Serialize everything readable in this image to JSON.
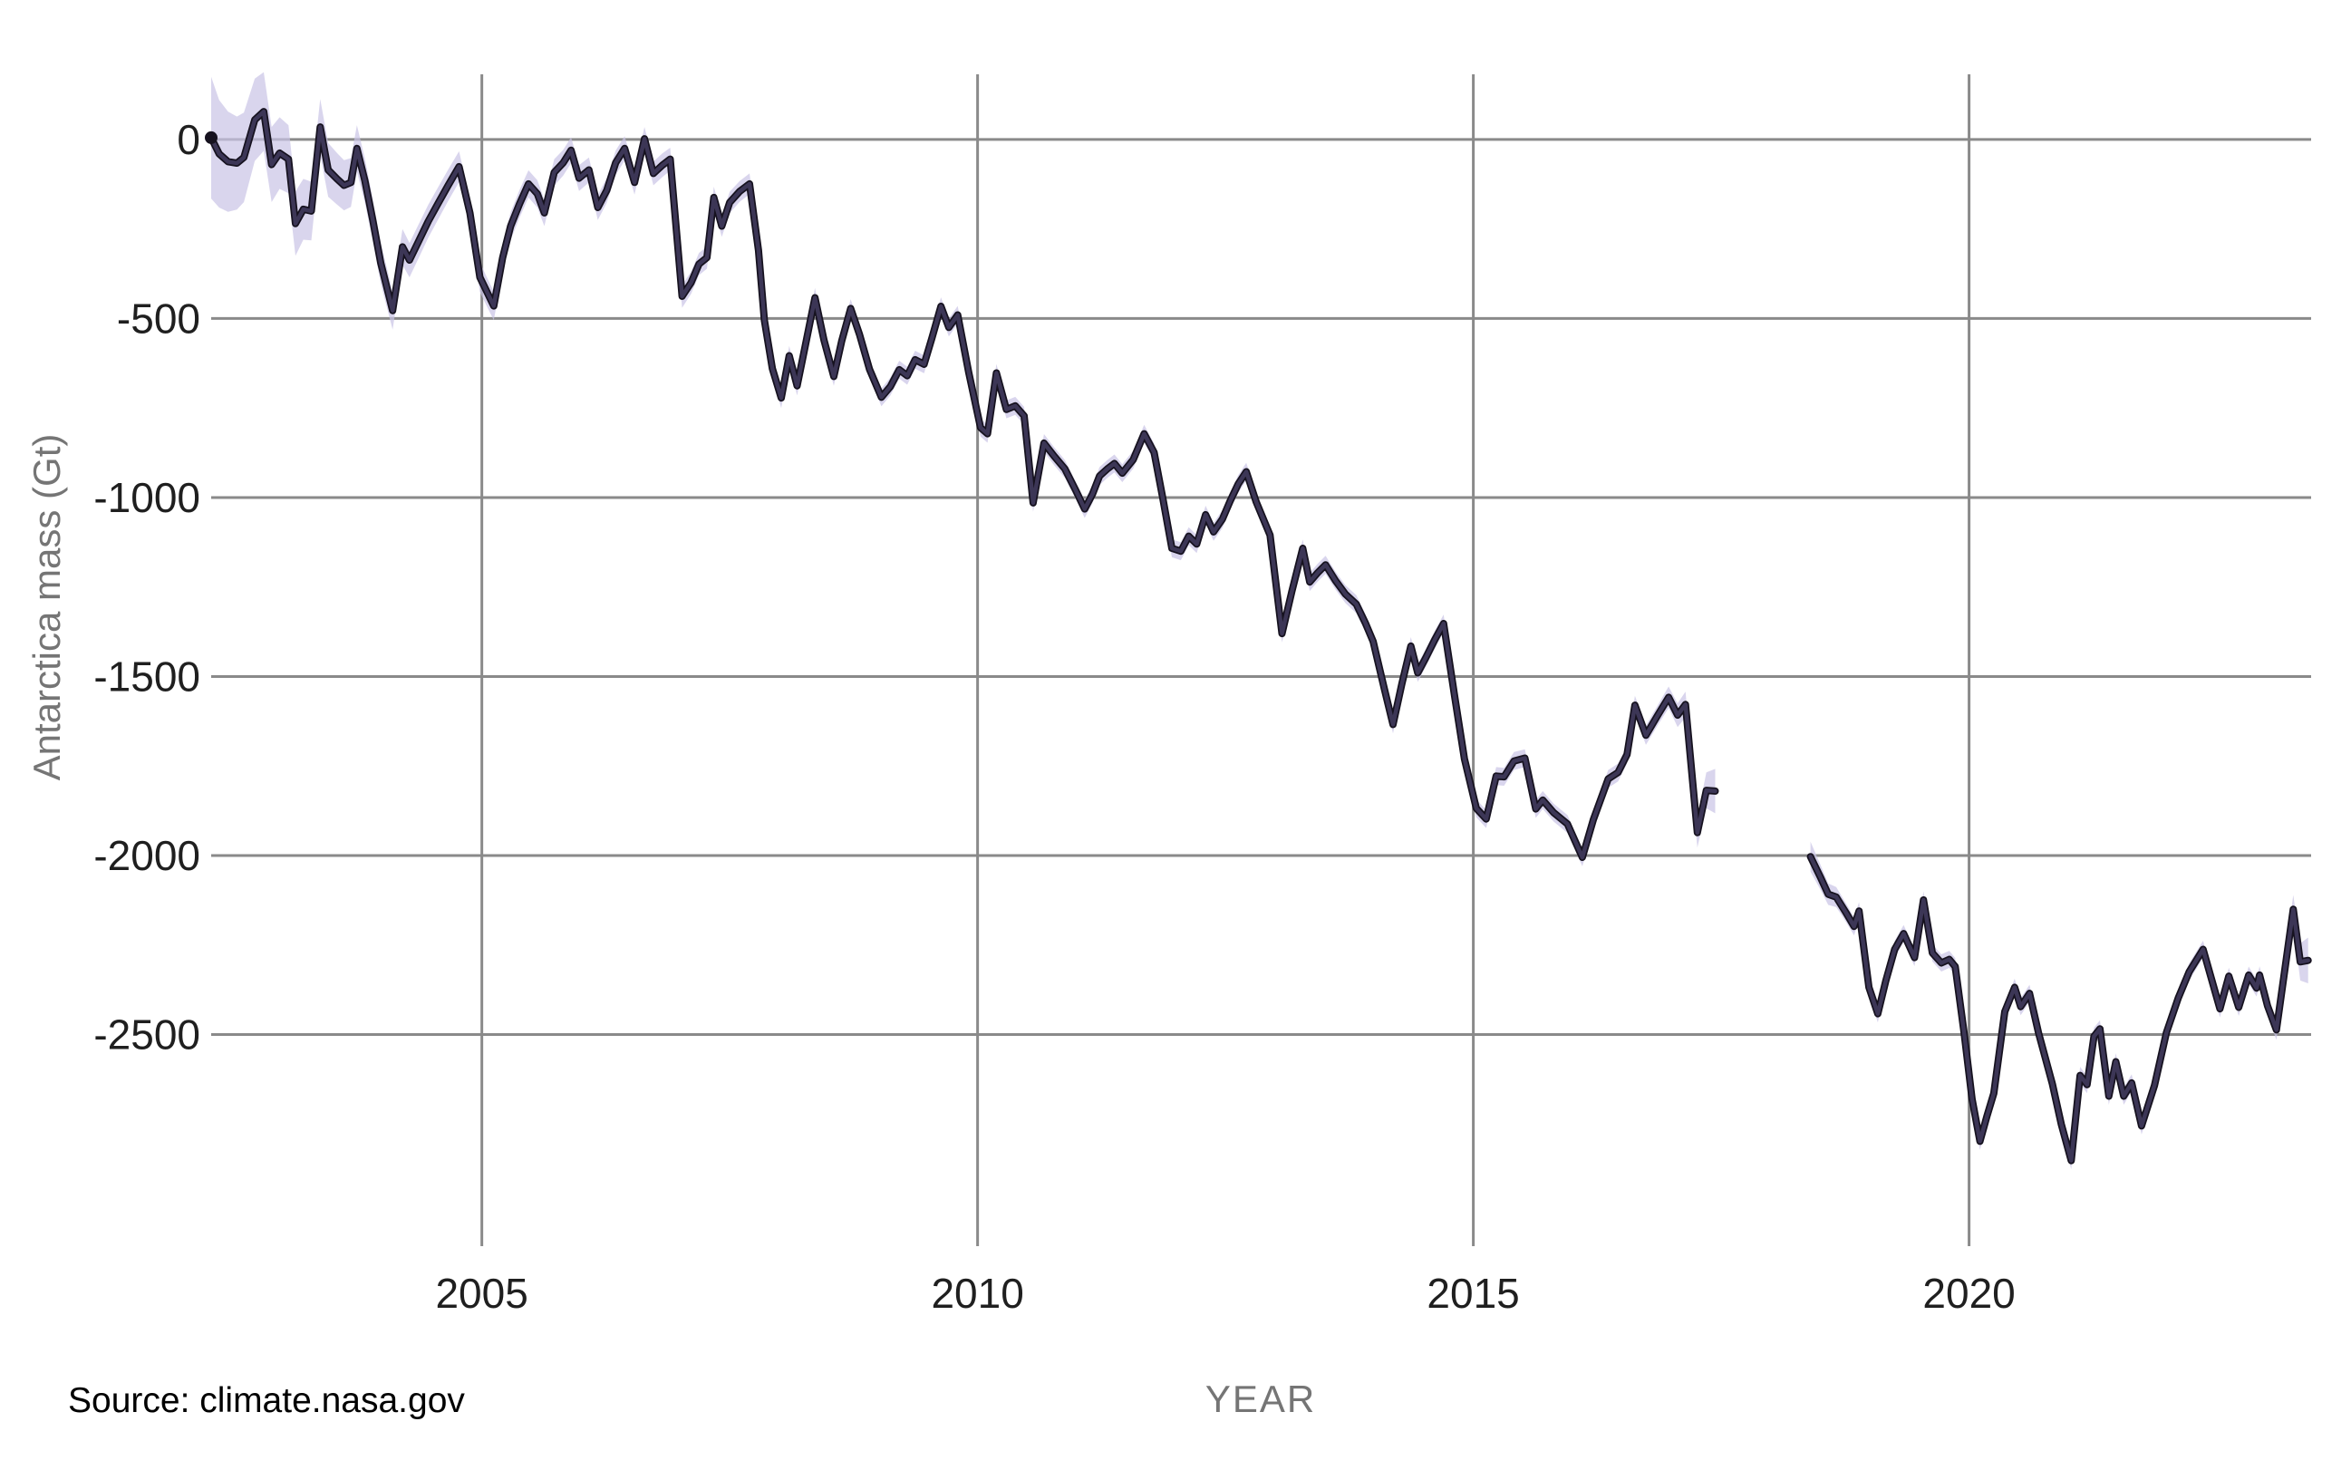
{
  "page": {
    "background": "#ffffff"
  },
  "source_note": "Source: climate.nasa.gov",
  "chart_data": {
    "type": "line",
    "title": "",
    "xlabel": "YEAR",
    "ylabel": "Antarctica mass (Gt)",
    "grid": true,
    "legend": "none",
    "xlim": [
      2002.27,
      2023.45
    ],
    "ylim": [
      182,
      -3091
    ],
    "x_ticks": [
      {
        "v": 2005,
        "label": "2005"
      },
      {
        "v": 2010,
        "label": "2010"
      },
      {
        "v": 2015,
        "label": "2015"
      },
      {
        "v": 2020,
        "label": "2020"
      }
    ],
    "y_ticks": [
      {
        "v": 0,
        "label": "0"
      },
      {
        "v": -500,
        "label": "-500"
      },
      {
        "v": -1000,
        "label": "-1000"
      },
      {
        "v": -1500,
        "label": "-1500"
      },
      {
        "v": -2000,
        "label": "-2000"
      },
      {
        "v": -2500,
        "label": "-2500"
      }
    ],
    "colors": {
      "grid": "#8a8a8a",
      "tick_label": "#1f1f1f",
      "axis_title": "#757575",
      "line_core": "#3c3656",
      "line_edge": "#16121f",
      "band": "#c9c3e5",
      "band_opacity": 0.7
    },
    "band_note": "points are [year, mass_anomaly_Gt, uncertainty_halfwidth_Gt]; shaded band = value ± uncertainty; gap 2017.5-2018.4 between GRACE and GRACE-FO missions",
    "series": [
      {
        "name": "grace",
        "points": [
          [
            2002.27,
            5,
            170
          ],
          [
            2002.35,
            -40,
            150
          ],
          [
            2002.44,
            -62,
            140
          ],
          [
            2002.53,
            -66,
            130
          ],
          [
            2002.6,
            -50,
            125
          ],
          [
            2002.71,
            55,
            115
          ],
          [
            2002.8,
            78,
            110
          ],
          [
            2002.88,
            -70,
            105
          ],
          [
            2002.96,
            -38,
            100
          ],
          [
            2003.05,
            -55,
            95
          ],
          [
            2003.12,
            -235,
            90
          ],
          [
            2003.2,
            -195,
            85
          ],
          [
            2003.28,
            -200,
            82
          ],
          [
            2003.37,
            35,
            78
          ],
          [
            2003.45,
            -85,
            75
          ],
          [
            2003.54,
            -110,
            72
          ],
          [
            2003.61,
            -128,
            70
          ],
          [
            2003.68,
            -120,
            68
          ],
          [
            2003.74,
            -25,
            65
          ],
          [
            2003.82,
            -115,
            62
          ],
          [
            2003.9,
            -225,
            60
          ],
          [
            2003.98,
            -345,
            57
          ],
          [
            2004.1,
            -478,
            53
          ],
          [
            2004.2,
            -300,
            50
          ],
          [
            2004.27,
            -337,
            48
          ],
          [
            2004.37,
            -280,
            47
          ],
          [
            2004.46,
            -228,
            46
          ],
          [
            2004.56,
            -178,
            45
          ],
          [
            2004.66,
            -128,
            44
          ],
          [
            2004.77,
            -76,
            43
          ],
          [
            2004.88,
            -205,
            42
          ],
          [
            2004.98,
            -385,
            41
          ],
          [
            2005.12,
            -465,
            40
          ],
          [
            2005.21,
            -330,
            40
          ],
          [
            2005.29,
            -242,
            39
          ],
          [
            2005.38,
            -180,
            39
          ],
          [
            2005.47,
            -124,
            38
          ],
          [
            2005.56,
            -152,
            38
          ],
          [
            2005.63,
            -205,
            37
          ],
          [
            2005.73,
            -92,
            37
          ],
          [
            2005.82,
            -65,
            36
          ],
          [
            2005.9,
            -30,
            36
          ],
          [
            2005.98,
            -108,
            36
          ],
          [
            2006.08,
            -85,
            35
          ],
          [
            2006.17,
            -190,
            35
          ],
          [
            2006.26,
            -142,
            35
          ],
          [
            2006.35,
            -65,
            34
          ],
          [
            2006.44,
            -25,
            34
          ],
          [
            2006.54,
            -120,
            34
          ],
          [
            2006.64,
            2,
            33
          ],
          [
            2006.73,
            -95,
            33
          ],
          [
            2006.82,
            -72,
            33
          ],
          [
            2006.9,
            -55,
            32
          ],
          [
            2007.02,
            -438,
            32
          ],
          [
            2007.11,
            -400,
            31
          ],
          [
            2007.19,
            -348,
            31
          ],
          [
            2007.27,
            -330,
            31
          ],
          [
            2007.34,
            -162,
            30
          ],
          [
            2007.42,
            -242,
            30
          ],
          [
            2007.5,
            -176,
            30
          ],
          [
            2007.6,
            -145,
            29
          ],
          [
            2007.7,
            -124,
            29
          ],
          [
            2007.79,
            -310,
            29
          ],
          [
            2007.85,
            -505,
            28
          ],
          [
            2007.93,
            -640,
            28
          ],
          [
            2008.02,
            -722,
            28
          ],
          [
            2008.1,
            -604,
            27
          ],
          [
            2008.18,
            -688,
            27
          ],
          [
            2008.27,
            -565,
            27
          ],
          [
            2008.36,
            -442,
            27
          ],
          [
            2008.45,
            -560,
            26
          ],
          [
            2008.55,
            -662,
            26
          ],
          [
            2008.63,
            -562,
            26
          ],
          [
            2008.72,
            -472,
            26
          ],
          [
            2008.81,
            -545,
            26
          ],
          [
            2008.91,
            -642,
            25
          ],
          [
            2009.03,
            -720,
            25
          ],
          [
            2009.12,
            -690,
            25
          ],
          [
            2009.21,
            -643,
            25
          ],
          [
            2009.29,
            -660,
            25
          ],
          [
            2009.37,
            -615,
            25
          ],
          [
            2009.46,
            -628,
            25
          ],
          [
            2009.54,
            -554,
            25
          ],
          [
            2009.63,
            -466,
            25
          ],
          [
            2009.71,
            -525,
            25
          ],
          [
            2009.8,
            -490,
            25
          ],
          [
            2009.91,
            -650,
            25
          ],
          [
            2010.03,
            -805,
            25
          ],
          [
            2010.1,
            -822,
            25
          ],
          [
            2010.19,
            -652,
            25
          ],
          [
            2010.29,
            -754,
            25
          ],
          [
            2010.38,
            -744,
            25
          ],
          [
            2010.47,
            -772,
            25
          ],
          [
            2010.56,
            -1015,
            25
          ],
          [
            2010.67,
            -848,
            25
          ],
          [
            2010.77,
            -884,
            25
          ],
          [
            2010.88,
            -920,
            25
          ],
          [
            2010.99,
            -980,
            25
          ],
          [
            2011.08,
            -1032,
            25
          ],
          [
            2011.16,
            -990,
            25
          ],
          [
            2011.23,
            -940,
            25
          ],
          [
            2011.31,
            -920,
            25
          ],
          [
            2011.38,
            -905,
            25
          ],
          [
            2011.46,
            -932,
            25
          ],
          [
            2011.57,
            -894,
            25
          ],
          [
            2011.68,
            -822,
            25
          ],
          [
            2011.78,
            -874,
            25
          ],
          [
            2011.87,
            -1005,
            25
          ],
          [
            2011.96,
            -1142,
            25
          ],
          [
            2012.05,
            -1150,
            25
          ],
          [
            2012.13,
            -1108,
            25
          ],
          [
            2012.21,
            -1130,
            25
          ],
          [
            2012.3,
            -1048,
            25
          ],
          [
            2012.38,
            -1096,
            25
          ],
          [
            2012.47,
            -1060,
            25
          ],
          [
            2012.55,
            -1008,
            25
          ],
          [
            2012.63,
            -962,
            25
          ],
          [
            2012.71,
            -928,
            25
          ],
          [
            2012.81,
            -1012,
            25
          ],
          [
            2012.95,
            -1105,
            25
          ],
          [
            2013.07,
            -1380,
            25
          ],
          [
            2013.17,
            -1262,
            25
          ],
          [
            2013.28,
            -1142,
            25
          ],
          [
            2013.35,
            -1236,
            25
          ],
          [
            2013.43,
            -1210,
            25
          ],
          [
            2013.51,
            -1188,
            25
          ],
          [
            2013.61,
            -1232,
            25
          ],
          [
            2013.71,
            -1270,
            25
          ],
          [
            2013.82,
            -1298,
            25
          ],
          [
            2013.91,
            -1350,
            25
          ],
          [
            2013.99,
            -1402,
            25
          ],
          [
            2014.1,
            -1532,
            25
          ],
          [
            2014.19,
            -1634,
            25
          ],
          [
            2014.28,
            -1520,
            25
          ],
          [
            2014.37,
            -1415,
            25
          ],
          [
            2014.44,
            -1490,
            25
          ],
          [
            2014.52,
            -1448,
            25
          ],
          [
            2014.61,
            -1398,
            25
          ],
          [
            2014.7,
            -1352,
            25
          ],
          [
            2014.81,
            -1552,
            25
          ],
          [
            2014.91,
            -1730,
            25
          ],
          [
            2015.03,
            -1868,
            25
          ],
          [
            2015.13,
            -1898,
            25
          ],
          [
            2015.23,
            -1778,
            25
          ],
          [
            2015.31,
            -1780,
            25
          ],
          [
            2015.41,
            -1736,
            25
          ],
          [
            2015.52,
            -1728,
            25
          ],
          [
            2015.63,
            -1870,
            25
          ],
          [
            2015.7,
            -1845,
            25
          ],
          [
            2015.81,
            -1880,
            25
          ],
          [
            2015.95,
            -1912,
            25
          ],
          [
            2016.1,
            -2005,
            25
          ],
          [
            2016.21,
            -1900,
            25
          ],
          [
            2016.36,
            -1786,
            25
          ],
          [
            2016.46,
            -1768,
            25
          ],
          [
            2016.55,
            -1718,
            25
          ],
          [
            2016.63,
            -1580,
            26
          ],
          [
            2016.74,
            -1664,
            27
          ],
          [
            2016.86,
            -1608,
            28
          ],
          [
            2016.97,
            -1558,
            30
          ],
          [
            2017.06,
            -1608,
            33
          ],
          [
            2017.14,
            -1578,
            36
          ],
          [
            2017.26,
            -1936,
            42
          ],
          [
            2017.35,
            -1818,
            50
          ],
          [
            2017.44,
            -1820,
            62
          ]
        ]
      },
      {
        "name": "grace-fo",
        "points": [
          [
            2018.4,
            -2003,
            42
          ],
          [
            2018.5,
            -2060,
            35
          ],
          [
            2018.58,
            -2108,
            30
          ],
          [
            2018.66,
            -2116,
            28
          ],
          [
            2018.76,
            -2160,
            26
          ],
          [
            2018.84,
            -2198,
            25
          ],
          [
            2018.89,
            -2155,
            25
          ],
          [
            2018.99,
            -2368,
            24
          ],
          [
            2019.08,
            -2442,
            24
          ],
          [
            2019.16,
            -2350,
            24
          ],
          [
            2019.25,
            -2262,
            24
          ],
          [
            2019.34,
            -2218,
            24
          ],
          [
            2019.45,
            -2285,
            24
          ],
          [
            2019.54,
            -2124,
            24
          ],
          [
            2019.63,
            -2272,
            24
          ],
          [
            2019.72,
            -2300,
            24
          ],
          [
            2019.8,
            -2290,
            24
          ],
          [
            2019.86,
            -2310,
            24
          ],
          [
            2019.95,
            -2495,
            24
          ],
          [
            2020.03,
            -2680,
            24
          ],
          [
            2020.11,
            -2798,
            24
          ],
          [
            2020.18,
            -2728,
            24
          ],
          [
            2020.25,
            -2664,
            24
          ],
          [
            2020.36,
            -2436,
            24
          ],
          [
            2020.46,
            -2368,
            24
          ],
          [
            2020.52,
            -2422,
            24
          ],
          [
            2020.61,
            -2385,
            24
          ],
          [
            2020.7,
            -2495,
            24
          ],
          [
            2020.84,
            -2638,
            24
          ],
          [
            2020.93,
            -2750,
            24
          ],
          [
            2021.03,
            -2852,
            24
          ],
          [
            2021.12,
            -2614,
            24
          ],
          [
            2021.19,
            -2640,
            24
          ],
          [
            2021.26,
            -2505,
            24
          ],
          [
            2021.32,
            -2484,
            24
          ],
          [
            2021.41,
            -2672,
            24
          ],
          [
            2021.48,
            -2576,
            24
          ],
          [
            2021.56,
            -2672,
            24
          ],
          [
            2021.64,
            -2635,
            24
          ],
          [
            2021.74,
            -2755,
            24
          ],
          [
            2021.87,
            -2642,
            24
          ],
          [
            2021.99,
            -2495,
            24
          ],
          [
            2022.11,
            -2398,
            24
          ],
          [
            2022.22,
            -2325,
            24
          ],
          [
            2022.36,
            -2262,
            24
          ],
          [
            2022.53,
            -2428,
            24
          ],
          [
            2022.62,
            -2337,
            24
          ],
          [
            2022.72,
            -2424,
            24
          ],
          [
            2022.82,
            -2334,
            24
          ],
          [
            2022.9,
            -2370,
            24
          ],
          [
            2022.93,
            -2334,
            25
          ],
          [
            2023.01,
            -2420,
            26
          ],
          [
            2023.1,
            -2487,
            28
          ],
          [
            2023.27,
            -2150,
            40
          ],
          [
            2023.34,
            -2297,
            52
          ],
          [
            2023.42,
            -2293,
            64
          ]
        ]
      }
    ]
  }
}
